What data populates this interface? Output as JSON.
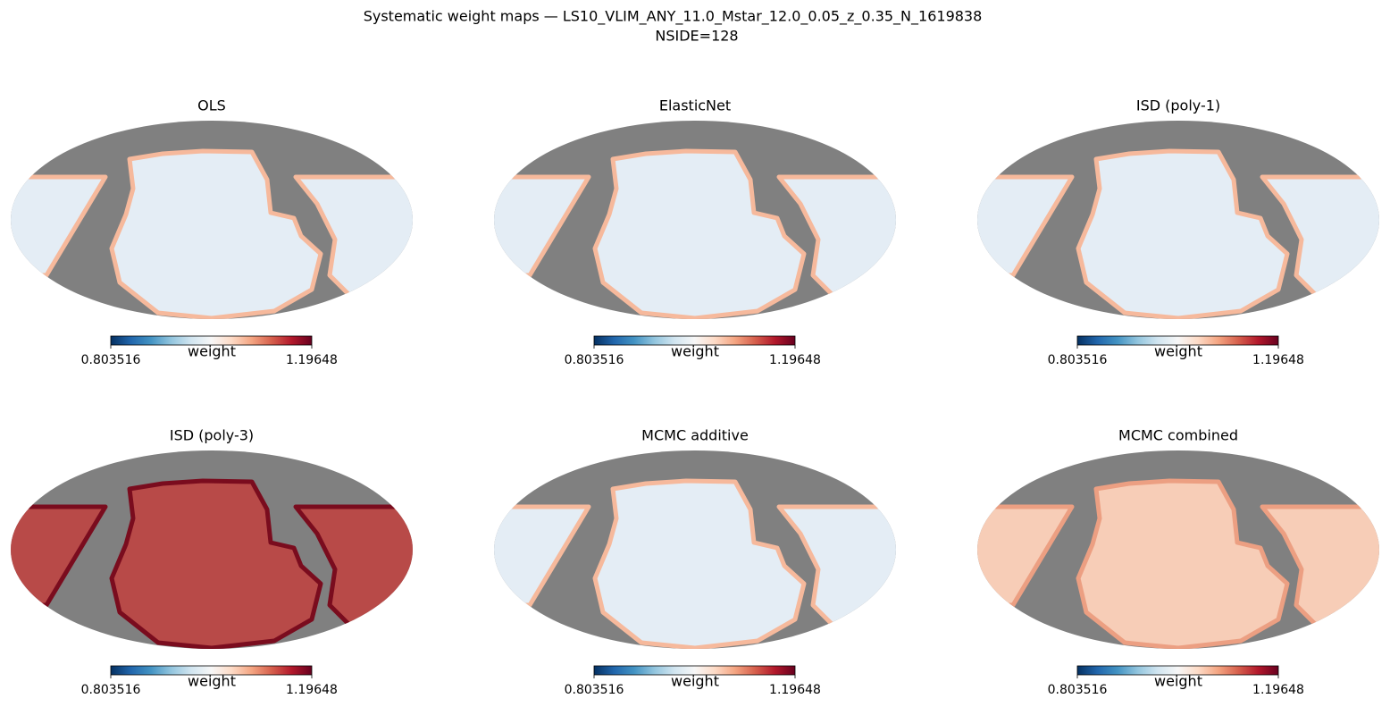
{
  "title": "Systematic weight maps — LS10_VLIM_ANY_11.0_Mstar_12.0_0.05_z_0.35_N_1619838",
  "subtitle": "NSIDE=128",
  "chart_data": [
    {
      "type": "map",
      "title": "OLS",
      "colorbar_label": "weight",
      "colormap": "RdBu_r",
      "clim": [
        0.803516,
        1.19648
      ],
      "cticks": [
        0.803516,
        1.19648
      ]
    },
    {
      "type": "map",
      "title": "ElasticNet",
      "colorbar_label": "weight",
      "colormap": "RdBu_r",
      "clim": [
        0.803516,
        1.19648
      ],
      "cticks": [
        0.803516,
        1.19648
      ]
    },
    {
      "type": "map",
      "title": "ISD (poly-1)",
      "colorbar_label": "weight",
      "colormap": "RdBu_r",
      "clim": [
        0.803516,
        1.19648
      ],
      "cticks": [
        0.803516,
        1.19648
      ]
    },
    {
      "type": "map",
      "title": "ISD (poly-3)",
      "colorbar_label": "weight",
      "colormap": "RdBu_r",
      "clim": [
        0.803516,
        1.19648
      ],
      "cticks": [
        0.803516,
        1.19648
      ]
    },
    {
      "type": "map",
      "title": "MCMC additive",
      "colorbar_label": "weight",
      "colormap": "RdBu_r",
      "clim": [
        0.803516,
        1.19648
      ],
      "cticks": [
        0.803516,
        1.19648
      ]
    },
    {
      "type": "map",
      "title": "MCMC combined",
      "colorbar_label": "weight",
      "colormap": "RdBu_r",
      "clim": [
        0.803516,
        1.19648
      ],
      "cticks": [
        0.803516,
        1.19648
      ]
    }
  ]
}
